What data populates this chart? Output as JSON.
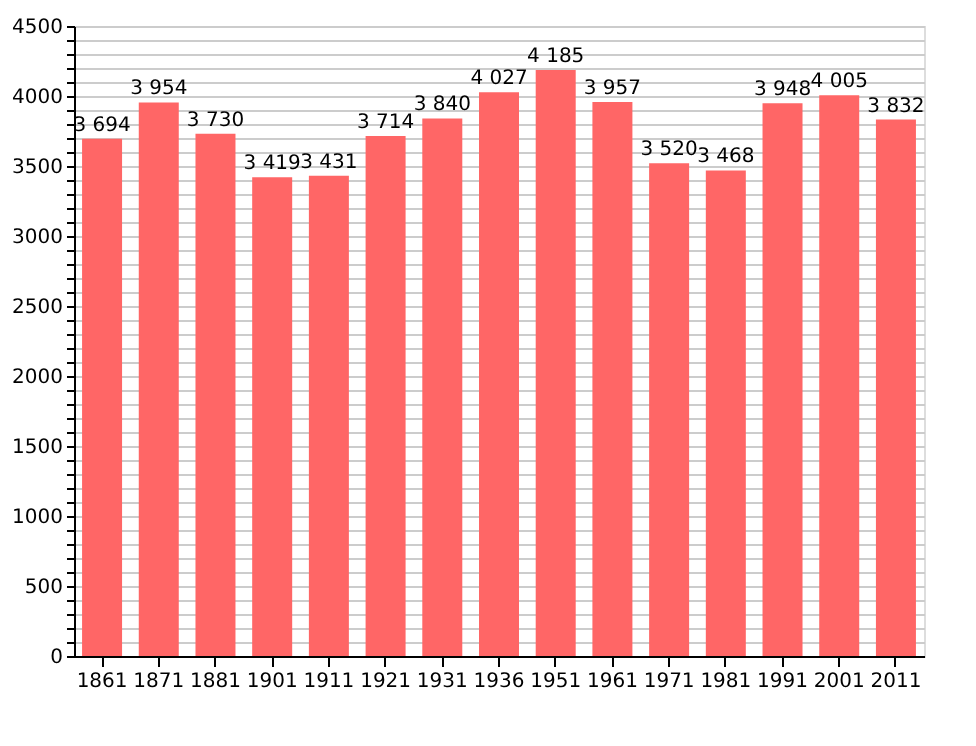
{
  "chart_data": {
    "type": "bar",
    "categories": [
      "1861",
      "1871",
      "1881",
      "1901",
      "1911",
      "1921",
      "1931",
      "1936",
      "1951",
      "1961",
      "1971",
      "1981",
      "1991",
      "2001",
      "2011"
    ],
    "values": [
      3694,
      3954,
      3730,
      3419,
      3431,
      3714,
      3840,
      4027,
      4185,
      3957,
      3520,
      3468,
      3948,
      4005,
      3832
    ],
    "value_labels": [
      "3 694",
      "3 954",
      "3 730",
      "3 419",
      "3 431",
      "3 714",
      "3 840",
      "4 027",
      "4 185",
      "3 957",
      "3 520",
      "3 468",
      "3 948",
      "4 005",
      "3 832"
    ],
    "color": "#ff6666",
    "ylim": [
      0,
      4500
    ],
    "yticks": [
      0,
      {
        "value": 100,
        "label": null
      },
      {
        "value": 200,
        "label": null
      },
      {
        "value": 300,
        "label": null
      },
      {
        "value": 400,
        "label": null
      },
      500,
      {
        "value": 600,
        "label": null
      },
      {
        "value": 700,
        "label": null
      },
      {
        "value": 800,
        "label": null
      },
      {
        "value": 900,
        "label": null
      },
      1000,
      {
        "value": 1100,
        "label": null
      },
      {
        "value": 1200,
        "label": null
      },
      {
        "value": 1300,
        "label": null
      },
      {
        "value": 1400,
        "label": null
      },
      1500,
      {
        "value": 1600,
        "label": null
      },
      {
        "value": 1700,
        "label": null
      },
      {
        "value": 1800,
        "label": null
      },
      {
        "value": 1900,
        "label": null
      },
      2000,
      {
        "value": 2100,
        "label": null
      },
      {
        "value": 2200,
        "label": null
      },
      {
        "value": 2300,
        "label": null
      },
      {
        "value": 2400,
        "label": null
      },
      2500,
      {
        "value": 2600,
        "label": null
      },
      {
        "value": 2700,
        "label": null
      },
      {
        "value": 2800,
        "label": null
      },
      {
        "value": 2900,
        "label": null
      },
      3000,
      {
        "value": 3100,
        "label": null
      },
      {
        "value": 3200,
        "label": null
      },
      {
        "value": 3300,
        "label": null
      },
      {
        "value": 3400,
        "label": null
      },
      3500,
      {
        "value": 3600,
        "label": null
      },
      {
        "value": 3700,
        "label": null
      },
      {
        "value": 3800,
        "label": null
      },
      {
        "value": 3900,
        "label": null
      },
      4000,
      {
        "value": 4100,
        "label": null
      },
      {
        "value": 4200,
        "label": null
      },
      {
        "value": 4300,
        "label": null
      },
      {
        "value": 4400,
        "label": null
      },
      4500
    ],
    "grid": "y"
  }
}
